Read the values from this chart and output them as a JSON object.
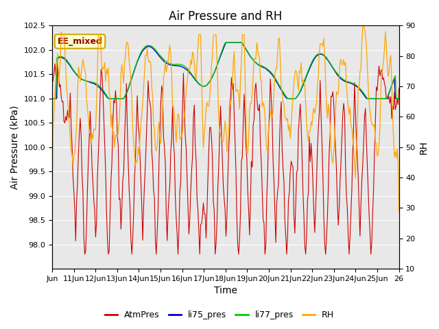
{
  "title": "Air Pressure and RH",
  "ylabel_left": "Air Pressure (kPa)",
  "ylabel_right": "RH",
  "xlabel": "Time",
  "ylim_left": [
    97.5,
    102.5
  ],
  "ylim_right": [
    10,
    90
  ],
  "yticks_left": [
    98.0,
    98.5,
    99.0,
    99.5,
    100.0,
    100.5,
    101.0,
    101.5,
    102.0,
    102.5
  ],
  "yticks_right": [
    10,
    20,
    30,
    40,
    50,
    60,
    70,
    80,
    90
  ],
  "xtick_positions": [
    0,
    1,
    2,
    3,
    4,
    5,
    6,
    7,
    8,
    9,
    10,
    11,
    12,
    13,
    14,
    15,
    16
  ],
  "xtick_labels": [
    "Jun",
    "11Jun",
    "12Jun",
    "13Jun",
    "14Jun",
    "15Jun",
    "16Jun",
    "17Jun",
    "18Jun",
    "19Jun",
    "20Jun",
    "21Jun",
    "22Jun",
    "23Jun",
    "24Jun",
    "25Jun",
    "26"
  ],
  "annotation_text": "EE_mixed",
  "annotation_color": "#8B0000",
  "annotation_bg": "#FFFFCC",
  "annotation_border": "#CCAA00",
  "colors": {
    "AtmPres": "#CC0000",
    "li75_pres": "#0000CC",
    "li77_pres": "#00CC00",
    "RH": "#FFA500"
  },
  "legend_labels": [
    "AtmPres",
    "li75_pres",
    "li77_pres",
    "RH"
  ],
  "bg_color": "#E8E8E8",
  "grid_color": "#FFFFFF",
  "title_fontsize": 12,
  "axis_fontsize": 10,
  "tick_fontsize": 8
}
